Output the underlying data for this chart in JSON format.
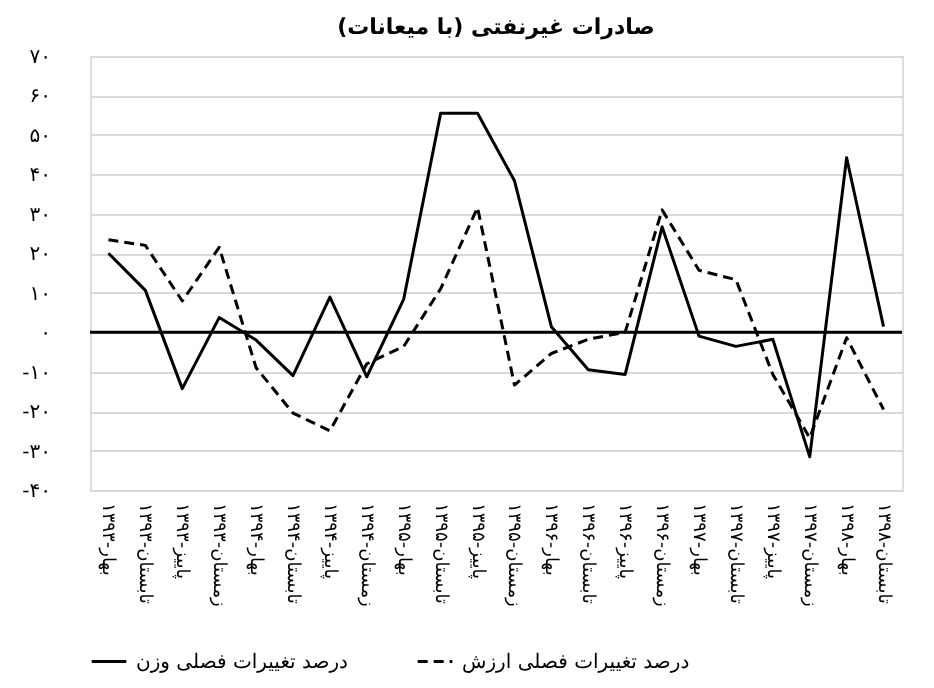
{
  "chart_data": {
    "type": "line",
    "title": "صادرات غیرنفتی (با میعانات)",
    "categories": [
      "بهار-۱۳۹۳",
      "تابستان-۱۳۹۳",
      "پاییز-۱۳۹۳",
      "زمستان-۱۳۹۳",
      "بهار-۱۳۹۴",
      "تابستان-۱۳۹۴",
      "پاییز-۱۳۹۴",
      "زمستان-۱۳۹۴",
      "بهار-۱۳۹۵",
      "تابستان-۱۳۹۵",
      "پاییز-۱۳۹۵",
      "زمستان-۱۳۹۵",
      "بهار-۱۳۹۶",
      "تابستان-۱۳۹۶",
      "پاییز-۱۳۹۶",
      "زمستان-۱۳۹۶",
      "بهار-۱۳۹۷",
      "تابستان-۱۳۹۷",
      "پاییز-۱۳۹۷",
      "زمستان-۱۳۹۷",
      "بهار-۱۳۹۸",
      "تابستان-۱۳۹۸"
    ],
    "series": [
      {
        "name": "درصد تغییرات فصلی وزن",
        "color": "#000000",
        "line_style": "solid",
        "values": [
          20,
          10.6,
          -14.3,
          3.7,
          -2,
          -11,
          8.9,
          -11.3,
          8.4,
          55.5,
          55.5,
          38.4,
          1.4,
          -9.5,
          -10.7,
          26.7,
          -1,
          -3.6,
          -1.8,
          -31.6,
          44.2,
          1.4
        ]
      },
      {
        "name": "درصد تغییرات فصلی ارزش",
        "color": "#000000",
        "line_style": "dashed",
        "values": [
          23.4,
          22,
          7.9,
          21.5,
          -9,
          -20.5,
          -25,
          -8,
          -3.6,
          11,
          31.6,
          -13.4,
          -5.4,
          -1.8,
          0,
          31,
          15.7,
          13.3,
          -10.7,
          -26.8,
          -1.4,
          -19.6
        ]
      }
    ],
    "ylim": [
      -40,
      70
    ],
    "yticks": [
      {
        "value": -40,
        "label": "-۴۰"
      },
      {
        "value": -30,
        "label": "-۳۰"
      },
      {
        "value": -20,
        "label": "-۲۰"
      },
      {
        "value": -10,
        "label": "-۱۰"
      },
      {
        "value": 0,
        "label": "۰"
      },
      {
        "value": 10,
        "label": "۱۰"
      },
      {
        "value": 20,
        "label": "۲۰"
      },
      {
        "value": 30,
        "label": "۳۰"
      },
      {
        "value": 40,
        "label": "۴۰"
      },
      {
        "value": 50,
        "label": "۵۰"
      },
      {
        "value": 60,
        "label": "۶۰"
      },
      {
        "value": 70,
        "label": "۷۰"
      }
    ],
    "ref_lines": [
      {
        "axis": "y",
        "value": 0,
        "color": "#000000"
      }
    ],
    "grid": "y",
    "legend": "bottom",
    "marker": "none"
  }
}
